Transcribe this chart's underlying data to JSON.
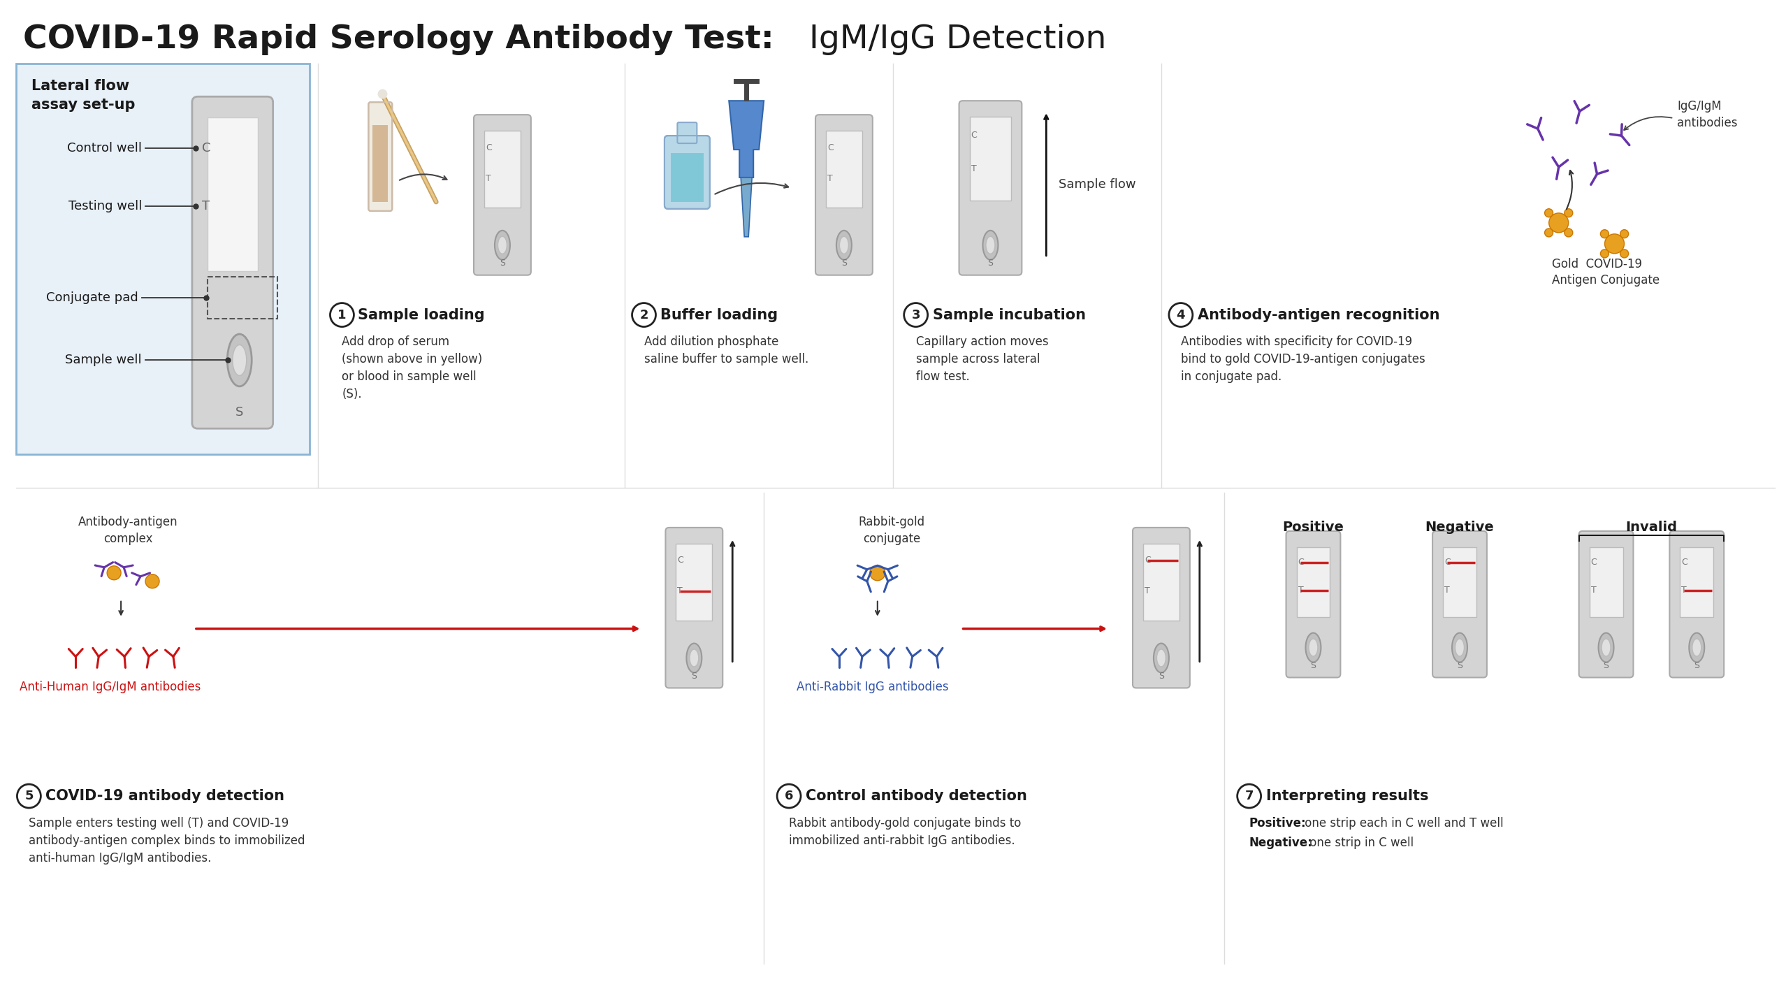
{
  "title_bold": "COVID-19 Rapid Serology Antibody Test:",
  "title_normal": " IgM/IgG Detection",
  "bg_color": "#ffffff",
  "lateral_box_color": "#e8f0f8",
  "lateral_box_border": "#8ab4d4",
  "device_body_color": "#d4d4d4",
  "device_window_color": "#f0f0f0",
  "red_line_color": "#cc2222",
  "step_circle_color": "#222222",
  "gold_color": "#e8a020",
  "purple_color": "#6633aa",
  "blue_color": "#3355aa",
  "red_ab_color": "#cc1111",
  "step1_title": "Sample loading",
  "step1_desc": "Add drop of serum\n(shown above in yellow)\nor blood in sample well\n(S).",
  "step2_title": "Buffer loading",
  "step2_desc": "Add dilution phosphate\nsaline buffer to sample well.",
  "step3_title": "Sample incubation",
  "step3_desc": "Capillary action moves\nsample across lateral\nflow test.",
  "step4_title": "Antibody-antigen recognition",
  "step4_desc": "Antibodies with specificity for COVID-19\nbind to gold COVID-19-antigen conjugates\nin conjugate pad.",
  "step5_title": "COVID-19 antibody detection",
  "step5_desc": "Sample enters testing well (T) and COVID-19\nantibody-antigen complex binds to immobilized\nanti-human IgG/IgM antibodies.",
  "step6_title": "Control antibody detection",
  "step6_desc": "Rabbit antibody-gold conjugate binds to\nimmobilized anti-rabbit IgG antibodies.",
  "step7_title": "Interpreting results",
  "step7_pos_bold": "Positive:",
  "step7_pos_text": " one strip each in C well and T well",
  "step7_neg_bold": "Negative:",
  "step7_neg_text": " one strip in C well",
  "lateral_flow_label": "Lateral flow\nassay set-up",
  "control_well_label": "Control well",
  "testing_well_label": "Testing well",
  "conjugate_pad_label": "Conjugate pad",
  "sample_well_label": "Sample well",
  "sample_flow_label": "Sample flow",
  "antibody_antigen_label": "Antibody-antigen\ncomplex",
  "rabbit_gold_label": "Rabbit-gold\nconjugate",
  "anti_human_label": "Anti-Human IgG/IgM antibodies",
  "anti_rabbit_label": "Anti-Rabbit IgG antibodies",
  "igg_igm_label": "IgG/IgM\nantibodies",
  "gold_covid_label": "Gold  COVID-19\nAntigen Conjugate",
  "positive_label": "Positive",
  "negative_label": "Negative",
  "invalid_label": "Invalid",
  "sep_color": "#dddddd",
  "text_dark": "#1a1a1a",
  "text_mid": "#333333",
  "text_light": "#666666"
}
